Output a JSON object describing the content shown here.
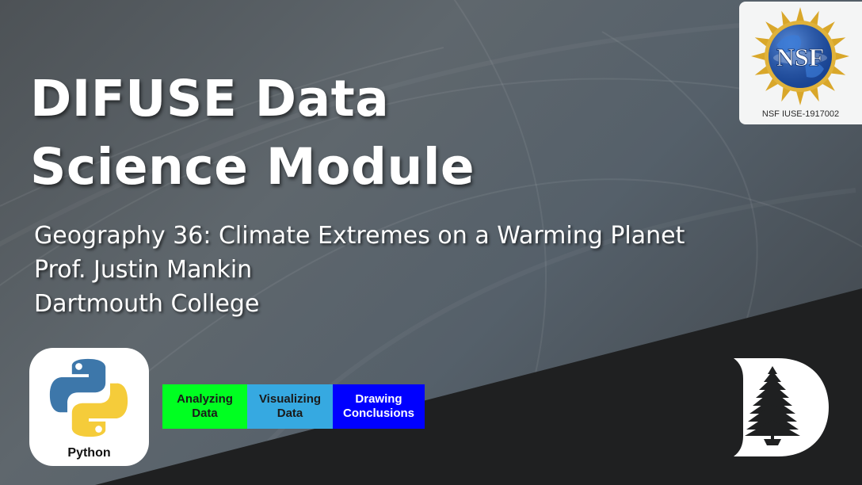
{
  "title": {
    "line1": "DIFUSE Data",
    "line2": "Science Module"
  },
  "subtitle": {
    "course": "Geography 36: Climate Extremes on a Warming Planet",
    "instructor": "Prof. Justin Mankin",
    "institution": "Dartmouth College"
  },
  "nsf_logo": {
    "wordmark": "NSF",
    "grant_label": "NSF IUSE-1917002",
    "icon": "nsf-globe-logo"
  },
  "python_logo": {
    "label": "Python",
    "icon": "python-logo"
  },
  "tags": [
    {
      "label": "Analyzing Data",
      "color": "#00ff21"
    },
    {
      "label": "Visualizing Data",
      "color": "#36a9e1"
    },
    {
      "label": "Drawing Conclusions",
      "color": "#0000ff"
    }
  ],
  "dartmouth_logo": {
    "icon": "dartmouth-d-pine-logo"
  },
  "colors": {
    "background": "#5a6268",
    "dark_band": "#212223",
    "text": "#ffffff"
  }
}
